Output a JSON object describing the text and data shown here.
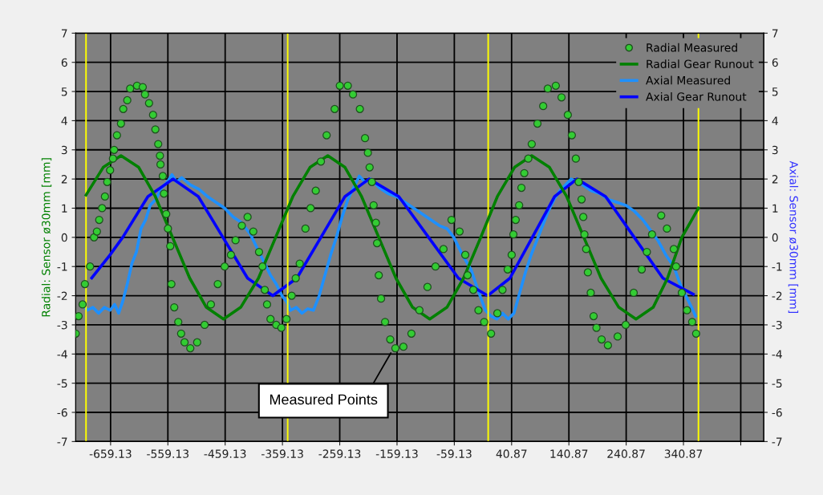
{
  "chart_data": {
    "type": "line",
    "ylabel": "Radial: Sensor ø30mm [mm]",
    "y2label": "Axial: Sensor ø30mm [mm]",
    "xlim": [
      -720,
      481
    ],
    "xticks": [
      -659.13,
      -559.13,
      -459.13,
      -359.13,
      -259.13,
      -159.13,
      -59.13,
      40.87,
      140.87,
      240.87,
      340.87,
      {
        "value": 440.87,
        "label": null
      }
    ],
    "ylim": [
      -7,
      7
    ],
    "yticks": [
      -7,
      -6,
      -5,
      -4,
      -3,
      -2,
      -1,
      0,
      1,
      2,
      3,
      4,
      5,
      6,
      7
    ],
    "y2lim": [
      -7,
      7
    ],
    "y2ticks": [
      -7,
      -6,
      -5,
      -4,
      -3,
      -2,
      -1,
      0,
      1,
      2,
      3,
      4,
      5,
      6,
      7
    ],
    "grid": true,
    "legend": "top right",
    "line_style": "solid",
    "ref_lines": [
      {
        "axis": "x",
        "value": -702,
        "color": "#ffff00"
      },
      {
        "axis": "x",
        "value": -350,
        "color": "#ffff00"
      },
      {
        "axis": "x",
        "value": 0,
        "color": "#ffff00"
      },
      {
        "axis": "x",
        "value": 367,
        "color": "#ffff00"
      }
    ],
    "annotations": [
      {
        "text": "Measured Points",
        "x": -168,
        "y": -3.9
      }
    ],
    "series": [
      {
        "name": "Radial Measured",
        "type": "scatter",
        "marker": "circle",
        "color": "#33cc33",
        "x": [
          -720,
          -715,
          -708,
          -704,
          -695,
          -688,
          -683,
          -679,
          -674,
          -669,
          -665,
          -660,
          -655,
          -653,
          -648,
          -641,
          -637,
          -630,
          -625,
          -613,
          -603,
          -599,
          -592,
          -585,
          -581,
          -576,
          -573,
          -572,
          -568,
          -566,
          -562,
          -559,
          -555,
          -553,
          -548,
          -541,
          -536,
          -530,
          -520,
          -508,
          -495,
          -484,
          -472,
          -460,
          -449,
          -441,
          -430,
          -420,
          -410,
          -400,
          -394,
          -390,
          -386,
          -380,
          -370,
          -361,
          -352,
          -343,
          -336,
          -329,
          -319,
          -310,
          -301,
          -292,
          -282,
          -268,
          -259,
          -245,
          -236,
          -224,
          -215,
          -210,
          -207,
          -203,
          -200,
          -196,
          -194,
          -191,
          -187,
          -180,
          -171,
          -162,
          -148,
          -134,
          -120,
          -106,
          -92,
          -78,
          -64,
          -50,
          -40,
          -36,
          -26,
          -17,
          -7,
          5,
          16,
          25,
          34,
          41,
          44,
          48,
          54,
          58,
          63,
          70,
          76,
          86,
          96,
          104,
          118,
          128,
          139,
          146,
          153,
          158,
          163,
          166,
          168,
          171,
          174,
          179,
          184,
          189,
          198,
          209,
          226,
          240,
          254,
          268,
          277,
          286,
          302,
          312,
          324,
          328,
          338,
          347,
          356,
          363
        ],
        "values": [
          -3.3,
          -2.7,
          -2.3,
          -1.6,
          -1.0,
          0.0,
          0.2,
          0.6,
          1.0,
          1.4,
          1.9,
          2.3,
          2.7,
          3.0,
          3.5,
          3.9,
          4.4,
          4.7,
          5.1,
          5.2,
          5.15,
          4.9,
          4.6,
          4.2,
          3.7,
          3.2,
          2.8,
          2.5,
          2.1,
          1.5,
          0.8,
          0.3,
          -0.3,
          -1.6,
          -2.4,
          -2.9,
          -3.3,
          -3.6,
          -3.8,
          -3.6,
          -3.0,
          -2.3,
          -1.6,
          -1.0,
          -0.6,
          -0.1,
          0.4,
          0.7,
          0.2,
          -0.5,
          -1.0,
          -1.8,
          -2.3,
          -2.8,
          -3.0,
          -3.1,
          -2.8,
          -2.0,
          -1.4,
          -0.9,
          0.3,
          1.0,
          1.6,
          2.6,
          3.5,
          4.4,
          5.2,
          5.2,
          4.9,
          4.4,
          3.4,
          2.9,
          2.4,
          1.9,
          1.1,
          0.5,
          -0.2,
          -1.3,
          -2.1,
          -2.9,
          -3.5,
          -3.8,
          -3.75,
          -3.3,
          -2.5,
          -1.7,
          -1.0,
          -0.4,
          0.6,
          0.2,
          -0.6,
          -1.3,
          -1.8,
          -2.5,
          -2.9,
          -3.3,
          -2.6,
          -1.8,
          -1.1,
          -0.6,
          0.1,
          0.6,
          1.1,
          1.7,
          2.2,
          2.7,
          3.2,
          3.9,
          4.5,
          5.1,
          5.2,
          4.8,
          4.2,
          3.5,
          2.7,
          1.9,
          1.3,
          0.7,
          0.1,
          -0.4,
          -1.2,
          -1.9,
          -2.7,
          -3.1,
          -3.5,
          -3.7,
          -3.4,
          -3.0,
          -1.9,
          -1.1,
          -0.5,
          0.1,
          0.75,
          0.3,
          -0.4,
          -1.0,
          -1.9,
          -2.5,
          -2.9,
          -3.3
        ]
      },
      {
        "name": "Radial Gear Runout",
        "color": "#008000",
        "x": [
          -702,
          -672,
          -641,
          -610,
          -581,
          -551,
          -521,
          -492,
          -462,
          -432,
          -401,
          -371,
          -341,
          -311,
          -280,
          -250,
          -221,
          -191,
          -161,
          -132,
          -102,
          -72,
          -43,
          -13,
          16,
          46,
          76,
          107,
          137,
          167,
          197,
          228,
          258,
          288,
          313,
          338,
          367
        ],
        "values": [
          1.45,
          2.4,
          2.8,
          2.4,
          1.4,
          0.0,
          -1.4,
          -2.4,
          -2.8,
          -2.4,
          -1.4,
          0.0,
          1.4,
          2.4,
          2.8,
          2.4,
          1.4,
          0.0,
          -1.4,
          -2.4,
          -2.8,
          -2.4,
          -1.4,
          0.0,
          1.4,
          2.4,
          2.8,
          2.4,
          1.4,
          0.0,
          -1.4,
          -2.4,
          -2.8,
          -2.4,
          -1.4,
          0.0,
          1.0
        ]
      },
      {
        "name": "Axial Measured",
        "axis": "y2",
        "color": "#1e90ff",
        "x": [
          -707,
          -700,
          -690,
          -680,
          -670,
          -660,
          -652,
          -645,
          -638,
          -630,
          -622,
          -614,
          -606,
          -598,
          -590,
          -580,
          -570,
          -560,
          -552,
          -544,
          -535,
          -520,
          -505,
          -490,
          -475,
          -460,
          -445,
          -430,
          -415,
          -400,
          -390,
          -380,
          -370,
          -360,
          -352,
          -345,
          -335,
          -325,
          -315,
          -305,
          -295,
          -285,
          -275,
          -265,
          -255,
          -245,
          -235,
          -225,
          -215,
          -205,
          -190,
          -175,
          -160,
          -145,
          -130,
          -115,
          -100,
          -85,
          -72,
          -60,
          -45,
          -30,
          -18,
          -5,
          5,
          15,
          25,
          35,
          45,
          55,
          65,
          75,
          85,
          95,
          105,
          115,
          125,
          135,
          145,
          155,
          165,
          180,
          195,
          210,
          225,
          240,
          255,
          270,
          285,
          296,
          310,
          324,
          335,
          345,
          355,
          362
        ],
        "values": [
          -2.3,
          -2.5,
          -2.4,
          -2.6,
          -2.4,
          -2.5,
          -2.3,
          -2.6,
          -2.2,
          -1.6,
          -0.9,
          -0.5,
          0.3,
          0.6,
          1.1,
          1.3,
          1.7,
          1.9,
          2.15,
          1.9,
          2.05,
          1.8,
          1.65,
          1.4,
          1.2,
          1.0,
          0.7,
          0.5,
          0.1,
          -0.5,
          -0.9,
          -1.3,
          -1.6,
          -2.0,
          -2.2,
          -2.5,
          -2.4,
          -2.6,
          -2.45,
          -2.5,
          -2.0,
          -1.3,
          -0.6,
          0.0,
          0.7,
          1.3,
          1.7,
          2.1,
          1.9,
          2.0,
          1.7,
          1.5,
          1.4,
          1.2,
          1.0,
          0.8,
          0.6,
          0.4,
          0.3,
          0.0,
          -0.6,
          -1.1,
          -1.8,
          -2.5,
          -2.7,
          -2.8,
          -2.6,
          -2.8,
          -2.6,
          -1.9,
          -1.2,
          -0.6,
          -0.1,
          0.4,
          0.9,
          1.3,
          1.6,
          1.8,
          2.0,
          1.9,
          1.8,
          1.6,
          1.5,
          1.3,
          1.2,
          1.1,
          0.9,
          0.6,
          0.2,
          -0.1,
          -0.6,
          -1.0,
          -1.6,
          -2.0,
          -2.4,
          -2.7
        ]
      },
      {
        "name": "Axial Gear Runout",
        "axis": "y2",
        "color": "#0000ff",
        "x": [
          -692,
          -660,
          -638,
          -594,
          -550,
          -506,
          -463,
          -420,
          -376,
          -334,
          -292,
          -250,
          -208,
          -156,
          -104,
          -52,
          -1,
          38,
          77,
          116,
          155,
          205,
          255,
          305,
          358
        ],
        "values": [
          -1.39,
          -0.6,
          0.0,
          1.4,
          2.0,
          1.4,
          0.0,
          -1.4,
          -2.0,
          -1.4,
          0.0,
          1.4,
          2.0,
          1.4,
          0.0,
          -1.4,
          -2.0,
          -1.4,
          0.0,
          1.4,
          2.0,
          1.4,
          0.0,
          -1.4,
          -1.95
        ]
      }
    ]
  }
}
